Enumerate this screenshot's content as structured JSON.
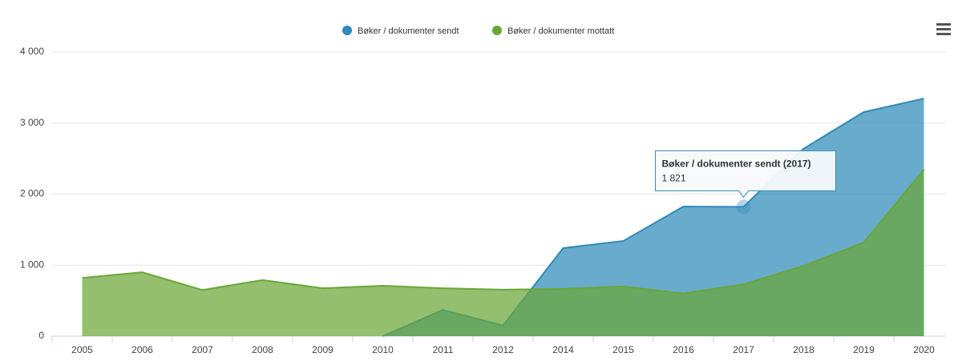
{
  "chart_data": {
    "type": "area",
    "categories": [
      "2005",
      "2006",
      "2007",
      "2008",
      "2009",
      "2010",
      "2011",
      "2012",
      "2014",
      "2015",
      "2016",
      "2017",
      "2018",
      "2019",
      "2020"
    ],
    "series": [
      {
        "name": "Bøker / dokumenter sendt",
        "color": "#2f8ab8",
        "values": [
          null,
          null,
          null,
          null,
          null,
          0,
          370,
          150,
          1240,
          1340,
          1825,
          1821,
          2640,
          3155,
          3345
        ]
      },
      {
        "name": "Bøker / dokumenter mottatt",
        "color": "#6aa636",
        "values": [
          820,
          900,
          650,
          790,
          675,
          710,
          675,
          655,
          665,
          700,
          600,
          730,
          990,
          1320,
          2345
        ]
      }
    ],
    "ylim": [
      0,
      4000
    ],
    "yticks": [
      0,
      {
        "value": 1000,
        "label": "1 000"
      },
      {
        "value": 2000,
        "label": "2 000"
      },
      {
        "value": 3000,
        "label": "3 000"
      },
      {
        "value": 4000,
        "label": "4 000"
      }
    ],
    "grid": true,
    "legend": "top",
    "tooltip": {
      "title": "Bøker / dokumenter sendt (2017)",
      "value_label": "1 821"
    }
  }
}
